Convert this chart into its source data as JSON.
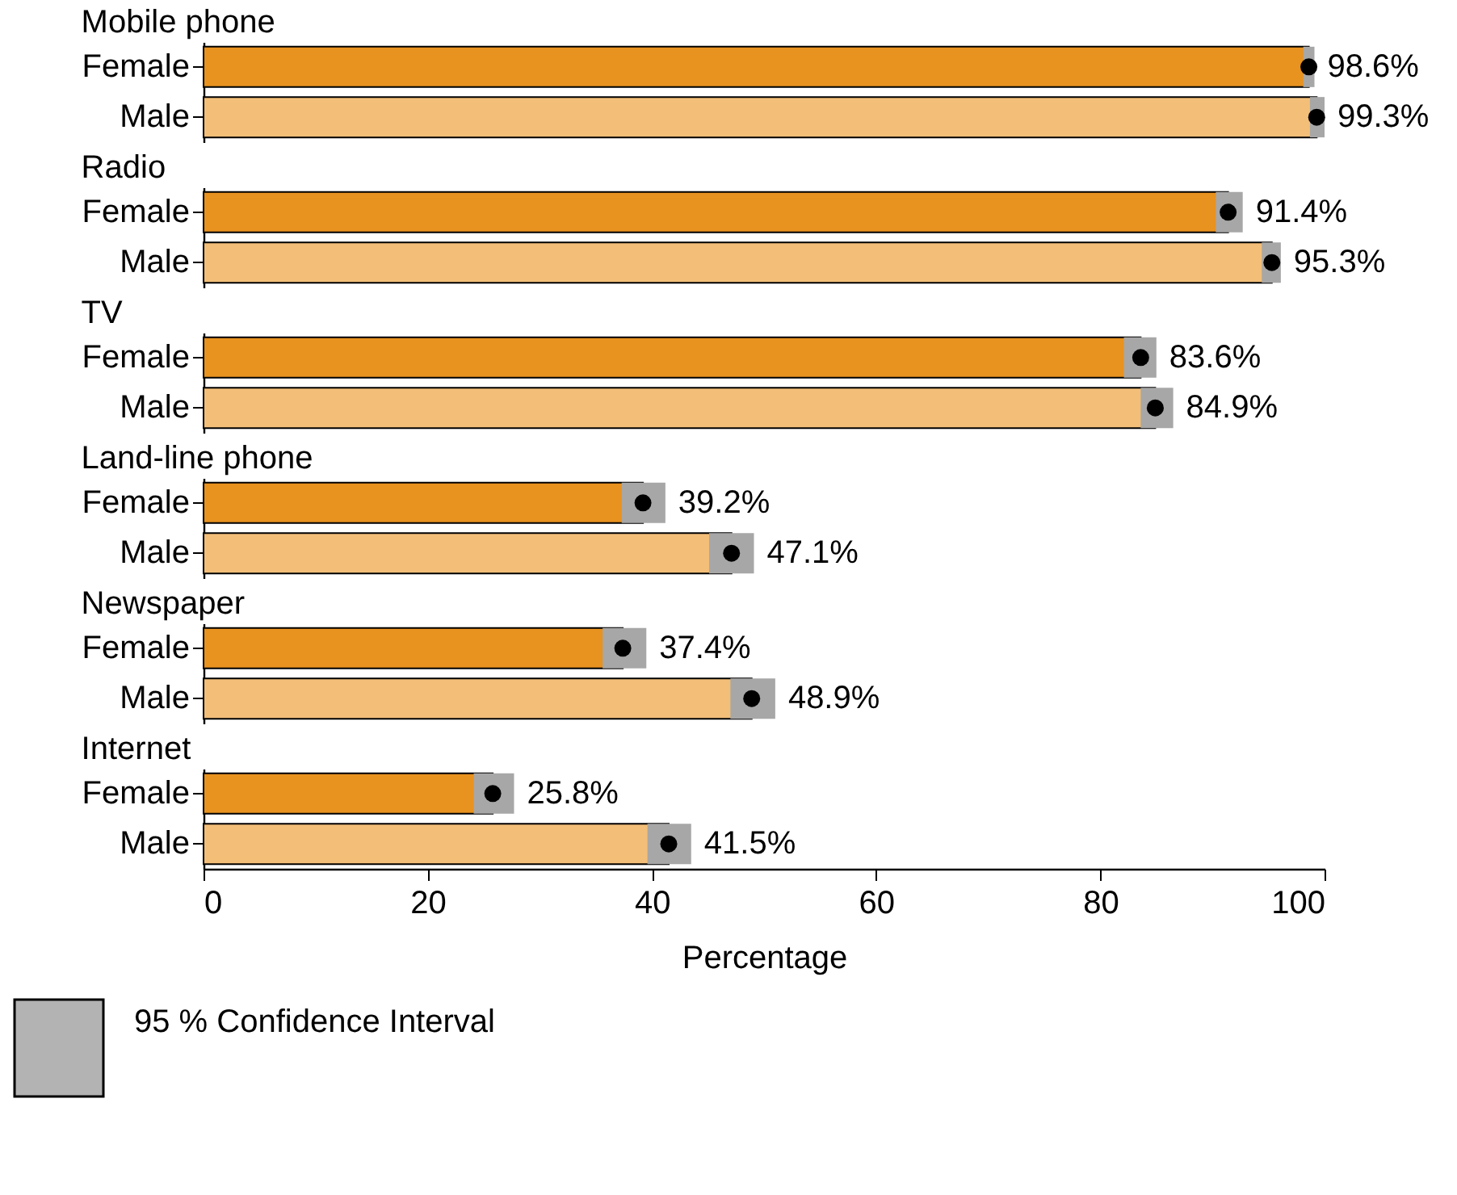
{
  "chart_data": [
    {
      "type": "bar",
      "orientation": "horizontal",
      "title": "Mobile phone",
      "categories": [
        "Female",
        "Male"
      ],
      "series": [
        {
          "values": [
            98.6,
            99.3
          ],
          "colors": [
            "#e8921f",
            "#f2be78"
          ],
          "errors": [
            [
              98.1,
              99.1
            ],
            [
              98.7,
              100
            ]
          ],
          "value_labels": [
            "98.6%",
            "99.3%"
          ]
        },
        {
          "type": "scatter",
          "values": [
            98.6,
            99.3
          ],
          "color": "#000000",
          "marker": "circle"
        }
      ],
      "xlim": [
        0,
        100
      ],
      "xticks": [
        0,
        20,
        40,
        60,
        80,
        100
      ],
      "tick_labels": "y",
      "grid": false
    },
    {
      "type": "bar",
      "orientation": "horizontal",
      "title": "Radio",
      "categories": [
        "Female",
        "Male"
      ],
      "series": [
        {
          "values": [
            91.4,
            95.3
          ],
          "colors": [
            "#e8921f",
            "#f2be78"
          ],
          "errors": [
            [
              90.3,
              92.7
            ],
            [
              94.4,
              96.1
            ]
          ],
          "value_labels": [
            "91.4%",
            "95.3%"
          ]
        },
        {
          "type": "scatter",
          "values": [
            91.4,
            95.3
          ],
          "color": "#000000",
          "marker": "circle"
        }
      ],
      "xlim": [
        0,
        100
      ],
      "xticks": [
        0,
        20,
        40,
        60,
        80,
        100
      ],
      "tick_labels": "y",
      "grid": false
    },
    {
      "type": "bar",
      "orientation": "horizontal",
      "title": "TV",
      "categories": [
        "Female",
        "Male"
      ],
      "series": [
        {
          "values": [
            83.6,
            84.9
          ],
          "colors": [
            "#e8921f",
            "#f2be78"
          ],
          "errors": [
            [
              82.1,
              85.0
            ],
            [
              83.6,
              86.5
            ]
          ],
          "value_labels": [
            "83.6%",
            "84.9%"
          ]
        },
        {
          "type": "scatter",
          "values": [
            83.6,
            84.9
          ],
          "color": "#000000",
          "marker": "circle"
        }
      ],
      "xlim": [
        0,
        100
      ],
      "xticks": [
        0,
        20,
        40,
        60,
        80,
        100
      ],
      "tick_labels": "y",
      "grid": false
    },
    {
      "type": "bar",
      "orientation": "horizontal",
      "title": "Land-line phone",
      "categories": [
        "Female",
        "Male"
      ],
      "series": [
        {
          "values": [
            39.2,
            47.1
          ],
          "colors": [
            "#e8921f",
            "#f2be78"
          ],
          "errors": [
            [
              37.3,
              41.2
            ],
            [
              45.1,
              49.1
            ]
          ],
          "value_labels": [
            "39.2%",
            "47.1%"
          ]
        },
        {
          "type": "scatter",
          "values": [
            39.2,
            47.1
          ],
          "color": "#000000",
          "marker": "circle"
        }
      ],
      "xlim": [
        0,
        100
      ],
      "xticks": [
        0,
        20,
        40,
        60,
        80,
        100
      ],
      "tick_labels": "y",
      "grid": false
    },
    {
      "type": "bar",
      "orientation": "horizontal",
      "title": "Newspaper",
      "categories": [
        "Female",
        "Male"
      ],
      "series": [
        {
          "values": [
            37.4,
            48.9
          ],
          "colors": [
            "#e8921f",
            "#f2be78"
          ],
          "errors": [
            [
              35.6,
              39.5
            ],
            [
              47.0,
              51.0
            ]
          ],
          "value_labels": [
            "37.4%",
            "48.9%"
          ]
        },
        {
          "type": "scatter",
          "values": [
            37.4,
            48.9
          ],
          "color": "#000000",
          "marker": "circle"
        }
      ],
      "xlim": [
        0,
        100
      ],
      "xticks": [
        0,
        20,
        40,
        60,
        80,
        100
      ],
      "tick_labels": "y",
      "grid": false
    },
    {
      "type": "bar",
      "orientation": "horizontal",
      "title": "Internet",
      "categories": [
        "Female",
        "Male"
      ],
      "series": [
        {
          "values": [
            25.8,
            41.5
          ],
          "colors": [
            "#e8921f",
            "#f2be78"
          ],
          "errors": [
            [
              24.1,
              27.7
            ],
            [
              39.6,
              43.5
            ]
          ],
          "value_labels": [
            "25.8%",
            "41.5%"
          ]
        },
        {
          "type": "scatter",
          "values": [
            25.8,
            41.5
          ],
          "color": "#000000",
          "marker": "circle"
        }
      ],
      "xlim": [
        0,
        100
      ],
      "xticks": [
        0,
        20,
        40,
        60,
        80,
        100
      ],
      "xlabel": "Percentage",
      "grid": false,
      "annotations": [
        "95 % Confidence Interval"
      ]
    }
  ]
}
